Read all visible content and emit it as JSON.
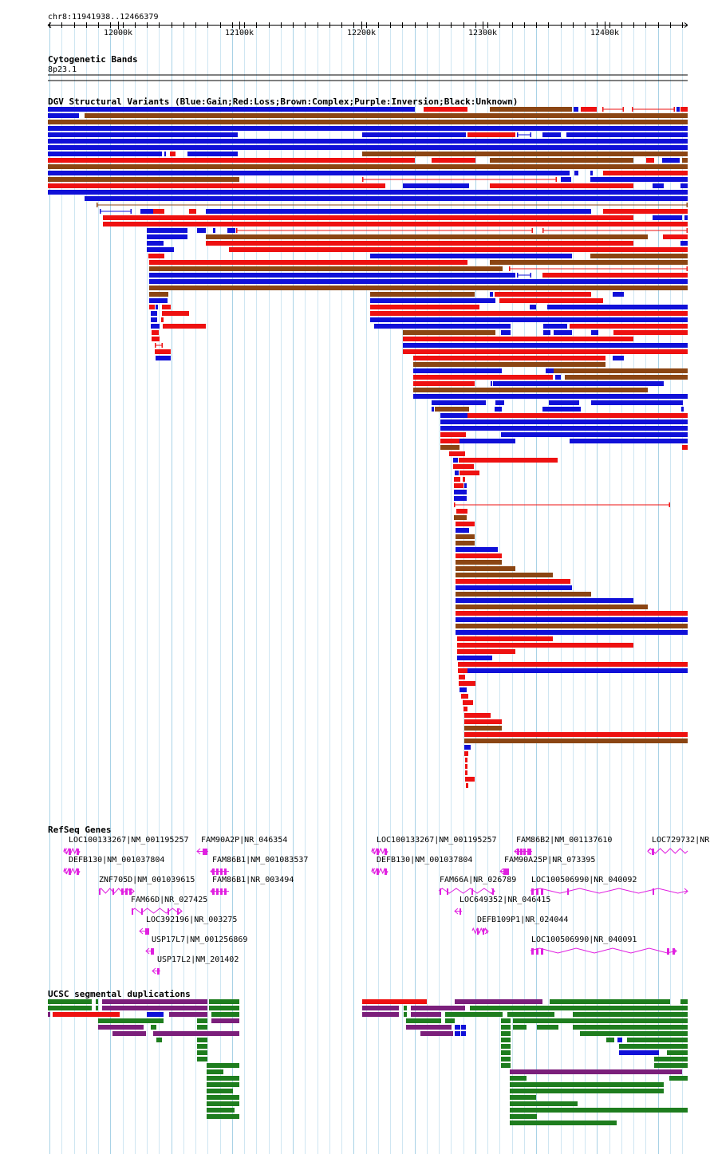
{
  "browser": {
    "position_label": "chr8:11941938..12466379",
    "ruler": {
      "ticks": [
        "12000k",
        "12100k",
        "12200k",
        "12300k",
        "12400k"
      ]
    },
    "grid_color": "#a8d2e6"
  },
  "tracks": {
    "cytoband": {
      "title": "Cytogenetic Bands",
      "band_label": "8p23.1"
    },
    "dgv": {
      "title": "DGV Structural Variants (Blue:Gain;Red:Loss;Brown:Complex;Purple:Inversion;Black:Unknown)",
      "colors": {
        "gain": "#1010d8",
        "loss": "#ee1111",
        "complex": "#8b4513",
        "inversion": "#7b1f7b",
        "unknown": "#000000"
      }
    },
    "refseq": {
      "title": "RefSeq Genes",
      "color": "#e020e0",
      "genes": [
        "LOC100133267|NM_001195257",
        "FAM90A2P|NR_046354",
        "DEFB130|NM_001037804",
        "FAM86B1|NM_001083537",
        "ZNF705D|NM_001039615",
        "FAM86B1|NR_003494",
        "FAM66D|NR_027425",
        "LOC392196|NR_003275",
        "USP17L7|NM_001256869",
        "USP17L2|NM_201402",
        "LOC100133267|NM_001195257",
        "FAM86B2|NM_001137610",
        "LOC729732|NR",
        "DEFB130|NM_001037804",
        "FAM90A25P|NR_073395",
        "FAM66A|NR_026789",
        "LOC100506990|NR_040092",
        "LOC649352|NR_046415",
        "DEFB109P1|NR_024044",
        "LOC100506990|NR_040091"
      ]
    },
    "segdup": {
      "title": "UCSC segmental duplications",
      "colors": {
        "green": "#1e7d1e",
        "purple": "#7b1f7b",
        "red": "#ee1111",
        "blue": "#1010d8"
      }
    }
  }
}
